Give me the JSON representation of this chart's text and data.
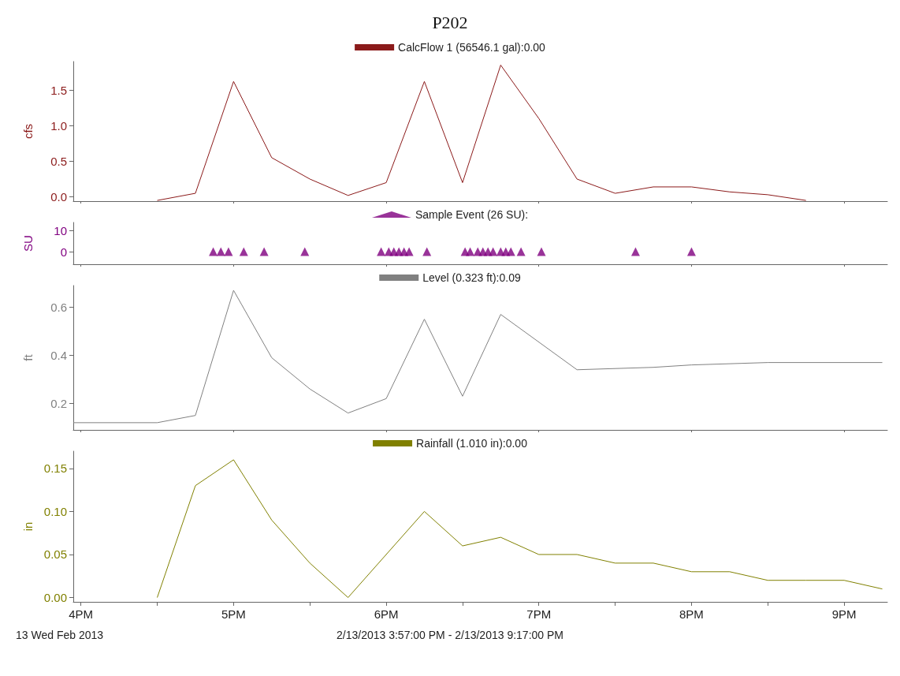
{
  "chart_data": [
    {
      "type": "line",
      "title": "P202",
      "ylabel": "cfs",
      "legend": "top",
      "tick_labels": "y",
      "xlim": [
        "2013-02-13T15:57",
        "2013-02-13T21:17"
      ],
      "ylim": [
        -0.06,
        1.9
      ],
      "yticks": [
        {
          "value": 0,
          "label": "0.0"
        },
        0.5,
        {
          "value": 1,
          "label": "1.0"
        },
        1.5
      ],
      "xticks": [
        {
          "value": "2013-02-13T16:00",
          "label": null
        },
        {
          "value": "2013-02-13T17:00",
          "label": null
        },
        {
          "value": "2013-02-13T18:00",
          "label": null
        },
        {
          "value": "2013-02-13T19:00",
          "label": null
        },
        {
          "value": "2013-02-13T20:00",
          "label": null
        },
        {
          "value": "2013-02-13T21:00",
          "label": null
        }
      ],
      "series": [
        {
          "name": "CalcFlow 1 (56546.1 gal):0.00",
          "color": "#8b1a1a",
          "x": [
            "2013-02-13T16:30",
            "2013-02-13T16:45",
            "2013-02-13T17:00",
            "2013-02-13T17:15",
            "2013-02-13T17:30",
            "2013-02-13T17:45",
            "2013-02-13T18:00",
            "2013-02-13T18:15",
            "2013-02-13T18:30",
            "2013-02-13T18:45",
            "2013-02-13T19:00",
            "2013-02-13T19:15",
            "2013-02-13T19:30",
            "2013-02-13T19:45",
            "2013-02-13T20:00",
            "2013-02-13T20:15",
            "2013-02-13T20:30",
            "2013-02-13T20:45"
          ],
          "values": [
            -0.05,
            0.05,
            1.62,
            0.55,
            0.25,
            0.02,
            0.2,
            1.62,
            0.2,
            1.85,
            1.1,
            0.25,
            0.05,
            0.14,
            0.14,
            0.07,
            0.03,
            -0.05
          ]
        }
      ]
    },
    {
      "type": "scatter",
      "ylabel": "SU",
      "legend": "top",
      "tick_labels": "y",
      "marker": "triangle",
      "xlim": [
        "2013-02-13T15:57",
        "2013-02-13T21:17"
      ],
      "ylim": [
        -6,
        14
      ],
      "yticks": [
        0,
        10
      ],
      "xticks": [
        {
          "value": "2013-02-13T16:00",
          "label": null
        },
        {
          "value": "2013-02-13T17:00",
          "label": null
        },
        {
          "value": "2013-02-13T18:00",
          "label": null
        },
        {
          "value": "2013-02-13T19:00",
          "label": null
        },
        {
          "value": "2013-02-13T20:00",
          "label": null
        },
        {
          "value": "2013-02-13T21:00",
          "label": null
        }
      ],
      "series": [
        {
          "name": "Sample Event (26 SU):",
          "color": "#800080",
          "x": [
            "2013-02-13T16:52",
            "2013-02-13T16:55",
            "2013-02-13T16:58",
            "2013-02-13T17:04",
            "2013-02-13T17:12",
            "2013-02-13T17:28",
            "2013-02-13T17:58",
            "2013-02-13T18:01",
            "2013-02-13T18:03",
            "2013-02-13T18:05",
            "2013-02-13T18:07",
            "2013-02-13T18:09",
            "2013-02-13T18:16",
            "2013-02-13T18:31",
            "2013-02-13T18:33",
            "2013-02-13T18:36",
            "2013-02-13T18:38",
            "2013-02-13T18:40",
            "2013-02-13T18:42",
            "2013-02-13T18:45",
            "2013-02-13T18:47",
            "2013-02-13T18:49",
            "2013-02-13T18:53",
            "2013-02-13T19:01",
            "2013-02-13T19:38",
            "2013-02-13T20:00"
          ],
          "values": [
            0,
            0,
            0,
            0,
            0,
            0,
            0,
            0,
            0,
            0,
            0,
            0,
            0,
            0,
            0,
            0,
            0,
            0,
            0,
            0,
            0,
            0,
            0,
            0,
            0,
            0
          ]
        }
      ]
    },
    {
      "type": "line",
      "ylabel": "ft",
      "legend": "top",
      "tick_labels": "y",
      "xlim": [
        "2013-02-13T15:57",
        "2013-02-13T21:17"
      ],
      "ylim": [
        0.09,
        0.69
      ],
      "yticks": [
        0.2,
        0.4,
        0.6
      ],
      "xticks": [
        {
          "value": "2013-02-13T16:00",
          "label": null
        },
        {
          "value": "2013-02-13T17:00",
          "label": null
        },
        {
          "value": "2013-02-13T18:00",
          "label": null
        },
        {
          "value": "2013-02-13T19:00",
          "label": null
        },
        {
          "value": "2013-02-13T20:00",
          "label": null
        },
        {
          "value": "2013-02-13T21:00",
          "label": null
        }
      ],
      "series": [
        {
          "name": "Level (0.323 ft):0.09",
          "color": "#808080",
          "x": [
            "2013-02-13T15:57",
            "2013-02-13T16:30",
            "2013-02-13T16:45",
            "2013-02-13T17:00",
            "2013-02-13T17:15",
            "2013-02-13T17:30",
            "2013-02-13T17:45",
            "2013-02-13T18:00",
            "2013-02-13T18:15",
            "2013-02-13T18:30",
            "2013-02-13T18:45",
            "2013-02-13T19:15",
            "2013-02-13T19:45",
            "2013-02-13T20:00",
            "2013-02-13T20:30",
            "2013-02-13T21:15"
          ],
          "values": [
            0.12,
            0.12,
            0.15,
            0.67,
            0.39,
            0.26,
            0.16,
            0.22,
            0.55,
            0.23,
            0.57,
            0.34,
            0.35,
            0.36,
            0.37,
            0.37
          ]
        }
      ]
    },
    {
      "type": "line",
      "ylabel": "in",
      "legend": "top",
      "xlim": [
        "2013-02-13T15:57",
        "2013-02-13T21:17"
      ],
      "ylim": [
        -0.005,
        0.17
      ],
      "yticks": [
        {
          "value": 0,
          "label": "0.00"
        },
        0.05,
        {
          "value": 0.1,
          "label": "0.10"
        },
        0.15
      ],
      "xticks": [
        {
          "value": "2013-02-13T16:00",
          "label": "4PM"
        },
        {
          "value": "2013-02-13T16:30",
          "label": null
        },
        {
          "value": "2013-02-13T17:00",
          "label": "5PM"
        },
        {
          "value": "2013-02-13T17:30",
          "label": null
        },
        {
          "value": "2013-02-13T18:00",
          "label": "6PM"
        },
        {
          "value": "2013-02-13T18:30",
          "label": null
        },
        {
          "value": "2013-02-13T19:00",
          "label": "7PM"
        },
        {
          "value": "2013-02-13T19:30",
          "label": null
        },
        {
          "value": "2013-02-13T20:00",
          "label": "8PM"
        },
        {
          "value": "2013-02-13T20:30",
          "label": null
        },
        {
          "value": "2013-02-13T21:00",
          "label": "9PM"
        }
      ],
      "annotations": [
        "13 Wed Feb 2013",
        "2/13/2013 3:57:00 PM - 2/13/2013 9:17:00 PM"
      ],
      "series": [
        {
          "name": "Rainfall (1.010 in):0.00",
          "color": "#808000",
          "x": [
            "2013-02-13T16:30",
            "2013-02-13T16:45",
            "2013-02-13T17:00",
            "2013-02-13T17:15",
            "2013-02-13T17:30",
            "2013-02-13T17:45",
            "2013-02-13T18:15",
            "2013-02-13T18:30",
            "2013-02-13T18:45",
            "2013-02-13T19:00",
            "2013-02-13T19:15",
            "2013-02-13T19:30",
            "2013-02-13T19:45",
            "2013-02-13T20:00",
            "2013-02-13T20:15",
            "2013-02-13T20:30",
            "2013-02-13T20:45",
            "2013-02-13T21:00",
            "2013-02-13T21:15"
          ],
          "values": [
            0,
            0.13,
            0.16,
            0.09,
            0.04,
            0,
            0.1,
            0.06,
            0.07,
            0.05,
            0.05,
            0.04,
            0.04,
            0.03,
            0.03,
            0.02,
            0.02,
            0.02,
            0.01
          ]
        }
      ]
    }
  ]
}
